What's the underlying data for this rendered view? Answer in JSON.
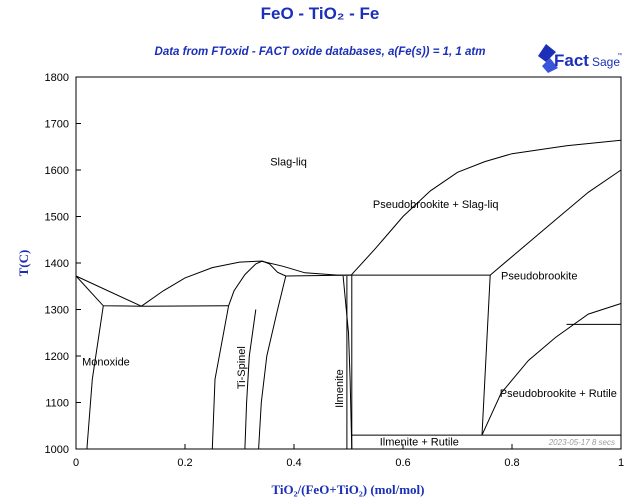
{
  "title": "FeO - TiO₂ - Fe",
  "subtitle": "Data from FToxid - FACT oxide databases,  a(Fe(s)) = 1, 1 atm",
  "logo": {
    "text": "FactSage",
    "superscript": "™",
    "icon": "factsage-logo-icon"
  },
  "stamp": "2023-05-17  8 secs",
  "chart_data": {
    "type": "phase-diagram",
    "xlabel": "TiO₂/(FeO+TiO₂) (mol/mol)",
    "ylabel": "T(C)",
    "xlim": [
      0,
      1
    ],
    "ylim": [
      1000,
      1800
    ],
    "x_ticks": [
      "0",
      "0.2",
      "0.4",
      "0.6",
      "0.8",
      "1"
    ],
    "x_tick_values": [
      0,
      0.2,
      0.4,
      0.6,
      0.8,
      1
    ],
    "y_ticks": [
      "1000",
      "1100",
      "1200",
      "1300",
      "1400",
      "1500",
      "1600",
      "1700",
      "1800"
    ],
    "y_tick_values": [
      1000,
      1100,
      1200,
      1300,
      1400,
      1500,
      1600,
      1700,
      1800
    ],
    "grid": false,
    "line_color": "#000000",
    "regions": [
      {
        "label": "Slag-liq",
        "x": 0.39,
        "y": 1610
      },
      {
        "label": "Pseudobrookite + Slag-liq",
        "x": 0.66,
        "y": 1518
      },
      {
        "label": "Pseudobrookite",
        "x": 0.85,
        "y": 1365
      },
      {
        "label": "Monoxide",
        "x": 0.055,
        "y": 1180
      },
      {
        "label": "Ti-Spinel",
        "x": 0.31,
        "y": 1175,
        "rotate": -90
      },
      {
        "label": "Ilmenite",
        "x": 0.49,
        "y": 1130,
        "rotate": -90
      },
      {
        "label": "Pseudobrookite + Rutile",
        "x": 0.885,
        "y": 1112
      },
      {
        "label": "Ilmenite + Rutile",
        "x": 0.63,
        "y": 1008
      }
    ],
    "lines": [
      {
        "points": [
          [
            0,
            1372
          ],
          [
            0.05,
            1308
          ],
          [
            0.12,
            1307
          ],
          [
            0.28,
            1308
          ]
        ]
      },
      {
        "points": [
          [
            0,
            1372
          ],
          [
            0.12,
            1307
          ]
        ]
      },
      {
        "points": [
          [
            0.12,
            1307
          ],
          [
            0.16,
            1340
          ],
          [
            0.2,
            1368
          ],
          [
            0.25,
            1390
          ],
          [
            0.3,
            1402
          ],
          [
            0.34,
            1404
          ],
          [
            0.38,
            1393
          ],
          [
            0.42,
            1379
          ],
          [
            0.48,
            1374
          ],
          [
            0.505,
            1374
          ]
        ]
      },
      {
        "points": [
          [
            0.28,
            1308
          ],
          [
            0.29,
            1340
          ],
          [
            0.31,
            1375
          ],
          [
            0.33,
            1398
          ],
          [
            0.342,
            1404
          ],
          [
            0.355,
            1398
          ],
          [
            0.37,
            1380
          ],
          [
            0.385,
            1372
          ]
        ]
      },
      {
        "points": [
          [
            0.385,
            1372
          ],
          [
            0.505,
            1374
          ]
        ]
      },
      {
        "points": [
          [
            0.505,
            1374
          ],
          [
            0.55,
            1432
          ],
          [
            0.6,
            1500
          ],
          [
            0.65,
            1555
          ],
          [
            0.7,
            1595
          ],
          [
            0.75,
            1618
          ],
          [
            0.8,
            1635
          ],
          [
            0.9,
            1652
          ],
          [
            1,
            1664
          ]
        ]
      },
      {
        "points": [
          [
            0.505,
            1374
          ],
          [
            0.76,
            1374
          ],
          [
            0.88,
            1493
          ],
          [
            0.94,
            1552
          ],
          [
            1,
            1600
          ]
        ]
      },
      {
        "points": [
          [
            0.05,
            1308
          ],
          [
            0.03,
            1150
          ],
          [
            0.02,
            1000
          ]
        ]
      },
      {
        "points": [
          [
            0.28,
            1308
          ],
          [
            0.255,
            1150
          ],
          [
            0.25,
            1000
          ]
        ]
      },
      {
        "points": [
          [
            0.385,
            1372
          ],
          [
            0.37,
            1300
          ],
          [
            0.35,
            1200
          ],
          [
            0.34,
            1100
          ],
          [
            0.335,
            1000
          ]
        ]
      },
      {
        "points": [
          [
            0.33,
            1300
          ],
          [
            0.318,
            1200
          ],
          [
            0.313,
            1100
          ],
          [
            0.31,
            1000
          ]
        ]
      },
      {
        "points": [
          [
            0.49,
            1372
          ],
          [
            0.5,
            1250
          ],
          [
            0.503,
            1150
          ],
          [
            0.506,
            1000
          ]
        ]
      },
      {
        "points": [
          [
            0.497,
            1372
          ],
          [
            0.497,
            1000
          ]
        ]
      },
      {
        "points": [
          [
            0.506,
            1374
          ],
          [
            0.506,
            1000
          ]
        ]
      },
      {
        "points": [
          [
            0.506,
            1030
          ],
          [
            1,
            1030
          ]
        ]
      },
      {
        "points": [
          [
            0.76,
            1374
          ],
          [
            0.745,
            1030
          ]
        ]
      },
      {
        "points": [
          [
            0.745,
            1030
          ],
          [
            0.78,
            1120
          ],
          [
            0.83,
            1190
          ],
          [
            0.88,
            1240
          ],
          [
            0.94,
            1290
          ],
          [
            1,
            1313
          ]
        ]
      },
      {
        "points": [
          [
            0.9,
            1268
          ],
          [
            1,
            1268
          ]
        ]
      }
    ]
  }
}
